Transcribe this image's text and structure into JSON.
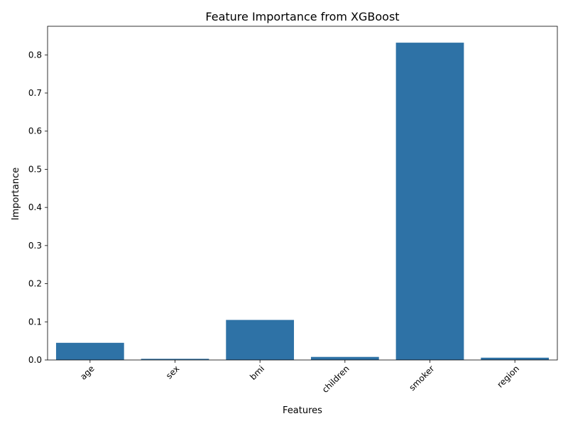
{
  "chart_data": {
    "type": "bar",
    "title": "Feature Importance from XGBoost",
    "xlabel": "Features",
    "ylabel": "Importance",
    "categories": [
      "age",
      "sex",
      "bmi",
      "children",
      "smoker",
      "region"
    ],
    "values": [
      0.045,
      0.003,
      0.105,
      0.008,
      0.832,
      0.006
    ],
    "ylim": [
      0,
      0.875
    ],
    "yticks": [
      "0.0",
      "0.1",
      "0.2",
      "0.3",
      "0.4",
      "0.5",
      "0.6",
      "0.7",
      "0.8"
    ],
    "bar_color": "#2e72a6",
    "grid": false,
    "legend": "none",
    "xtick_rotation": "45 degrees"
  }
}
